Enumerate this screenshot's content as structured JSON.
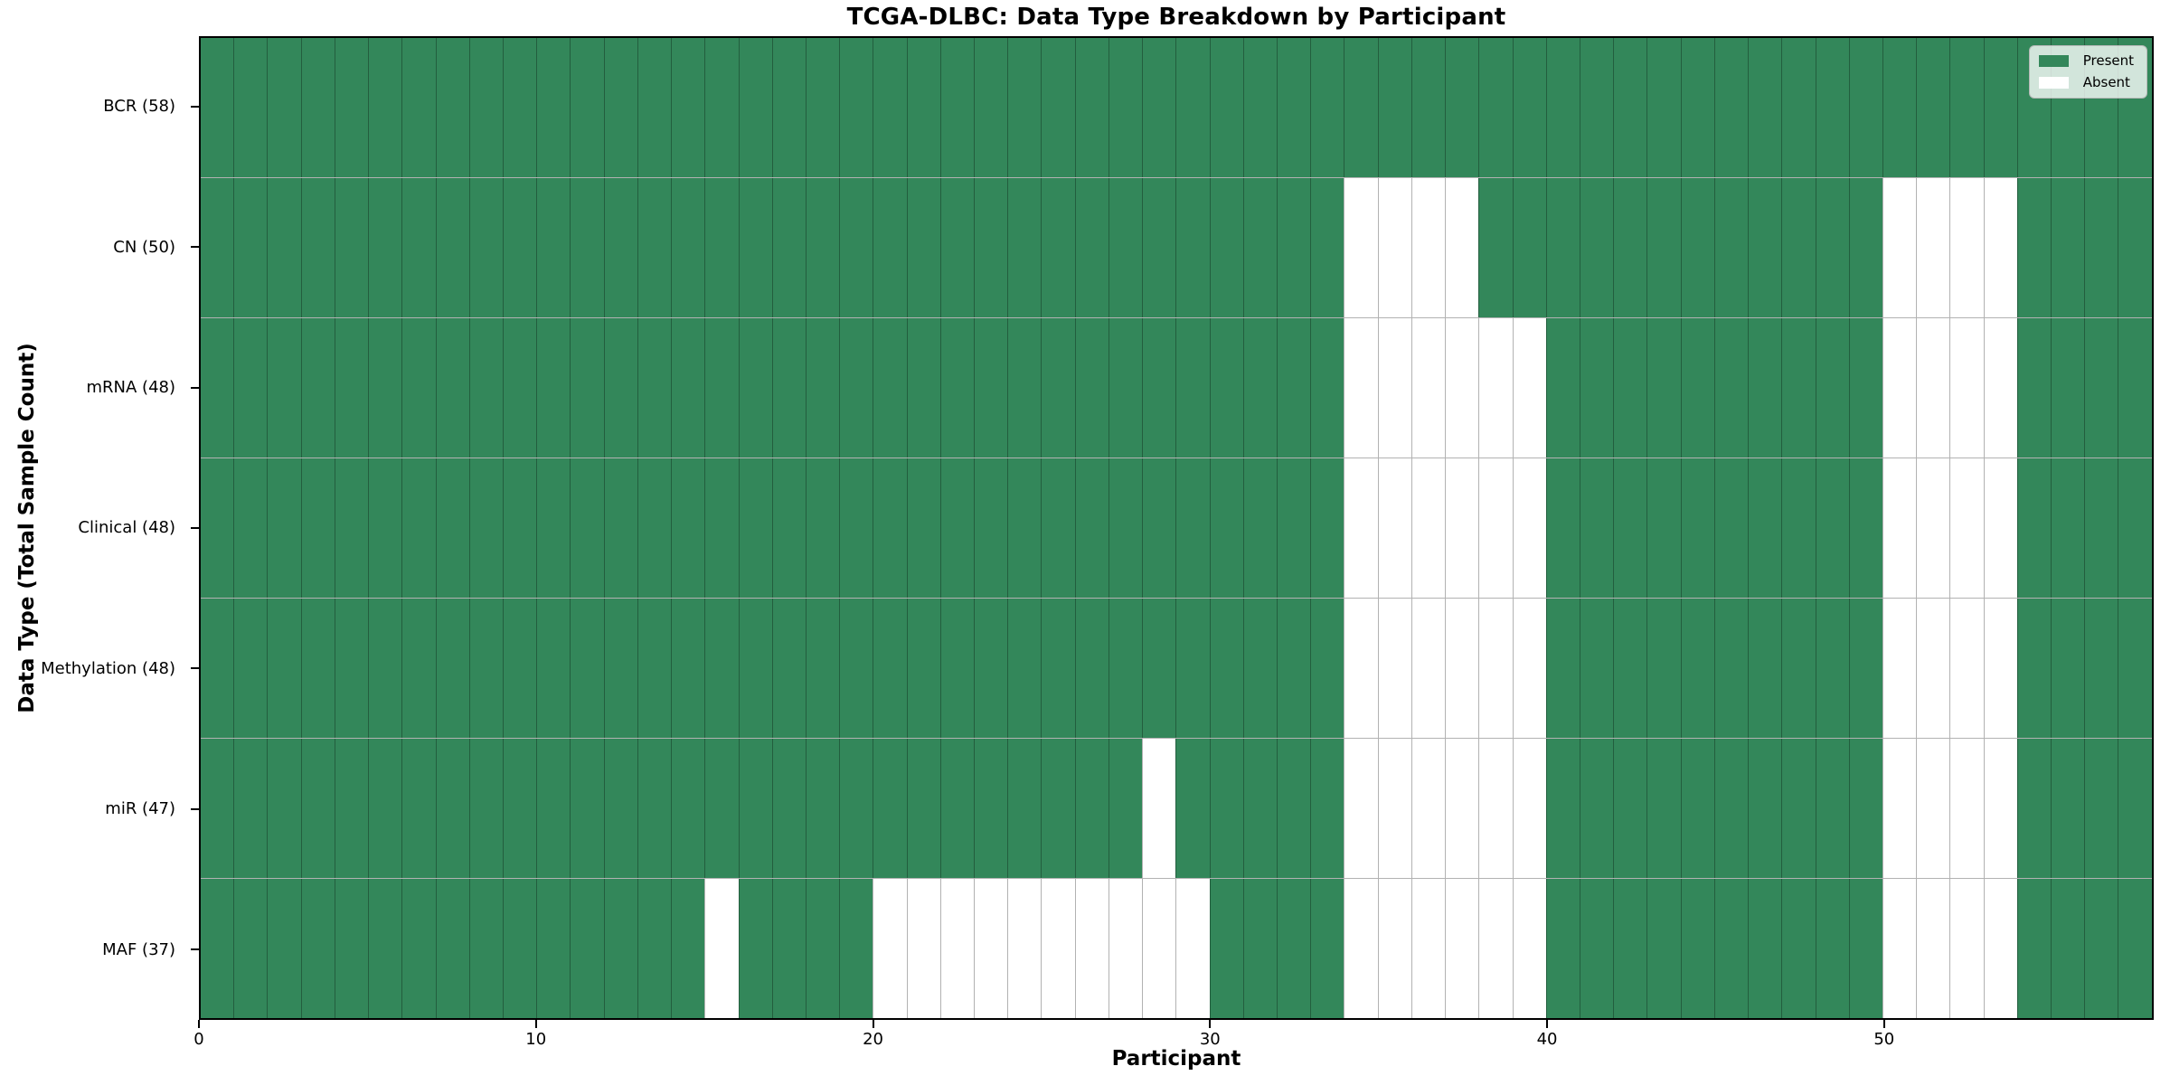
{
  "title": "TCGA-DLBC: Data Type Breakdown by Participant",
  "xlabel": "Participant",
  "ylabel": "Data Type (Total Sample Count)",
  "legend": {
    "position": "upper right",
    "items": [
      {
        "label": "Present",
        "swatch": "present-color"
      },
      {
        "label": "Absent",
        "swatch": "absent-color"
      }
    ]
  },
  "colors": {
    "present": "#33875a",
    "absent": "#ffffff",
    "gridline": "rgba(0,0,0,0.30)",
    "spine": "#000000"
  },
  "chart_data": {
    "type": "heatmap",
    "title": "TCGA-DLBC: Data Type Breakdown by Participant",
    "xlabel": "Participant",
    "ylabel": "Data Type (Total Sample Count)",
    "n_participants": 58,
    "x_range": [
      0,
      58
    ],
    "x_ticks": [
      {
        "value": 0,
        "label": "0"
      },
      {
        "value": 10,
        "label": "10"
      },
      {
        "value": 20,
        "label": "20"
      },
      {
        "value": 30,
        "label": "30"
      },
      {
        "value": 40,
        "label": "40"
      },
      {
        "value": 50,
        "label": "50"
      }
    ],
    "grid": true,
    "legend_position": "upper right",
    "cell_states": {
      "present": 1,
      "absent": 0
    },
    "rows": [
      {
        "label": "BCR (58)",
        "data_type": "BCR",
        "total": 58,
        "absent_participants": []
      },
      {
        "label": "CN (50)",
        "data_type": "CN",
        "total": 50,
        "absent_participants": [
          34,
          35,
          36,
          37,
          50,
          51,
          52,
          53
        ]
      },
      {
        "label": "mRNA (48)",
        "data_type": "mRNA",
        "total": 48,
        "absent_participants": [
          34,
          35,
          36,
          37,
          38,
          39,
          50,
          51,
          52,
          53
        ]
      },
      {
        "label": "Clinical (48)",
        "data_type": "Clinical",
        "total": 48,
        "absent_participants": [
          34,
          35,
          36,
          37,
          38,
          39,
          50,
          51,
          52,
          53
        ]
      },
      {
        "label": "Methylation (48)",
        "data_type": "Methylation",
        "total": 48,
        "absent_participants": [
          34,
          35,
          36,
          37,
          38,
          39,
          50,
          51,
          52,
          53
        ]
      },
      {
        "label": "miR (47)",
        "data_type": "miR",
        "total": 47,
        "absent_participants": [
          28,
          34,
          35,
          36,
          37,
          38,
          39,
          50,
          51,
          52,
          53
        ]
      },
      {
        "label": "MAF (37)",
        "data_type": "MAF",
        "total": 37,
        "absent_participants": [
          15,
          20,
          21,
          22,
          23,
          24,
          25,
          26,
          27,
          28,
          29,
          34,
          35,
          36,
          37,
          38,
          39,
          50,
          51,
          52,
          53
        ]
      }
    ]
  }
}
